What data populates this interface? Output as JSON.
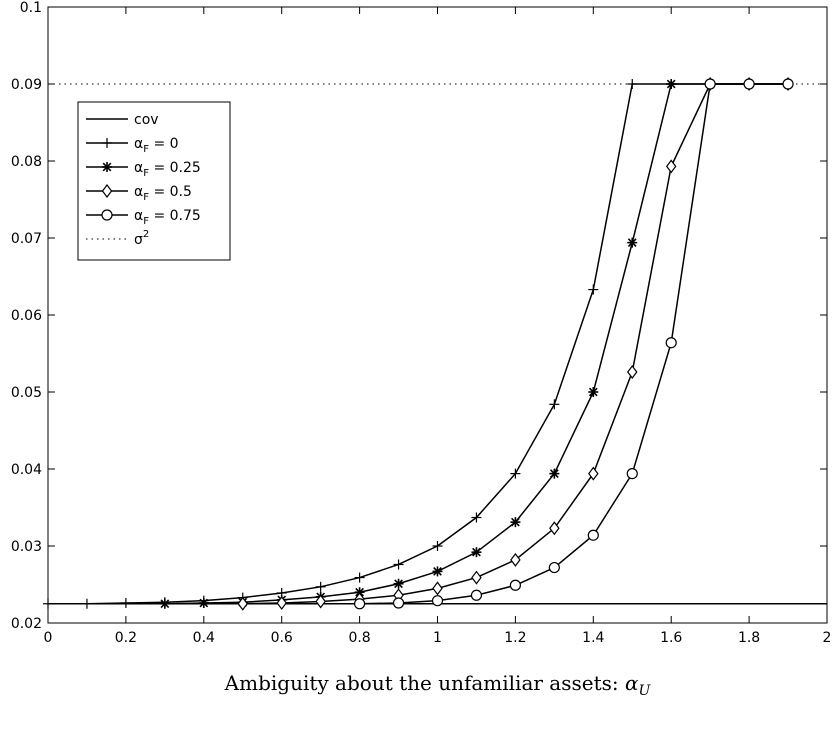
{
  "chart_data": {
    "type": "line",
    "title": "",
    "xlabel": "Ambiguity about the unfamiliar assets: α_U",
    "xlabel_main": "Ambiguity about the unfamiliar assets: ",
    "xlabel_symbol": "α",
    "xlabel_subscript": "U",
    "ylabel": "",
    "xlim": [
      0,
      2
    ],
    "ylim": [
      0.02,
      0.1
    ],
    "xticks": [
      0,
      0.2,
      0.4,
      0.6,
      0.8,
      1,
      1.2,
      1.4,
      1.6,
      1.8,
      2
    ],
    "xtick_labels": [
      "0",
      "0.2",
      "0.4",
      "0.6",
      "0.8",
      "1",
      "1.2",
      "1.4",
      "1.6",
      "1.8",
      "2"
    ],
    "yticks": [
      0.02,
      0.03,
      0.04,
      0.05,
      0.06,
      0.07,
      0.08,
      0.09,
      0.1
    ],
    "ytick_labels": [
      "0.02",
      "0.03",
      "0.04",
      "0.05",
      "0.06",
      "0.07",
      "0.08",
      "0.09",
      "0.1"
    ],
    "grid": false,
    "legend_position": "top-left",
    "series": [
      {
        "name": "cov",
        "legend_label": "cov",
        "style": "solid",
        "marker": "none",
        "x": [
          0,
          2
        ],
        "y": [
          0.0225,
          0.0225
        ]
      },
      {
        "name": "α_F = 0",
        "legend_symbol": "α",
        "legend_sub": "F",
        "legend_rest": " = 0",
        "style": "solid",
        "marker": "plus",
        "x": [
          0,
          0.1,
          0.2,
          0.3,
          0.4,
          0.5,
          0.6,
          0.7,
          0.8,
          0.9,
          1.0,
          1.1,
          1.2,
          1.3,
          1.4,
          1.5,
          1.6,
          1.7,
          1.8,
          1.9
        ],
        "y": [
          0.0225,
          0.0225,
          0.0226,
          0.0227,
          0.0229,
          0.0233,
          0.0239,
          0.0247,
          0.0259,
          0.0276,
          0.03,
          0.0337,
          0.0394,
          0.0484,
          0.0633,
          0.09,
          0.09,
          0.09,
          0.09,
          0.09
        ]
      },
      {
        "name": "α_F = 0.25",
        "legend_symbol": "α",
        "legend_sub": "F",
        "legend_rest": " = 0.25",
        "style": "solid",
        "marker": "star",
        "x": [
          0.3,
          0.4,
          0.5,
          0.6,
          0.7,
          0.8,
          0.9,
          1.0,
          1.1,
          1.2,
          1.3,
          1.4,
          1.5,
          1.6,
          1.7,
          1.8,
          1.9
        ],
        "y": [
          0.0225,
          0.0226,
          0.0227,
          0.023,
          0.0234,
          0.024,
          0.0251,
          0.0267,
          0.0292,
          0.0331,
          0.0394,
          0.05,
          0.0694,
          0.09,
          0.09,
          0.09,
          0.09
        ]
      },
      {
        "name": "α_F = 0.5",
        "legend_symbol": "α",
        "legend_sub": "F",
        "legend_rest": " = 0.5",
        "style": "solid",
        "marker": "diamond",
        "x": [
          0.5,
          0.6,
          0.7,
          0.8,
          0.9,
          1.0,
          1.1,
          1.2,
          1.3,
          1.4,
          1.5,
          1.6,
          1.7,
          1.8,
          1.9
        ],
        "y": [
          0.0225,
          0.0226,
          0.0228,
          0.0231,
          0.0236,
          0.0245,
          0.0259,
          0.0282,
          0.0323,
          0.0394,
          0.0526,
          0.0793,
          0.09,
          0.09,
          0.09
        ]
      },
      {
        "name": "α_F = 0.75",
        "legend_symbol": "α",
        "legend_sub": "F",
        "legend_rest": " = 0.75",
        "style": "solid",
        "marker": "circle",
        "x": [
          0.8,
          0.9,
          1.0,
          1.1,
          1.2,
          1.3,
          1.4,
          1.5,
          1.6,
          1.7,
          1.8,
          1.9
        ],
        "y": [
          0.0225,
          0.0226,
          0.0229,
          0.0236,
          0.0249,
          0.0272,
          0.0314,
          0.0394,
          0.0564,
          0.09,
          0.09,
          0.09
        ]
      },
      {
        "name": "σ²",
        "legend_symbol": "σ",
        "legend_sup": "2",
        "legend_rest": "",
        "style": "dotted",
        "marker": "none",
        "x": [
          0,
          2
        ],
        "y": [
          0.09,
          0.09
        ]
      }
    ]
  }
}
